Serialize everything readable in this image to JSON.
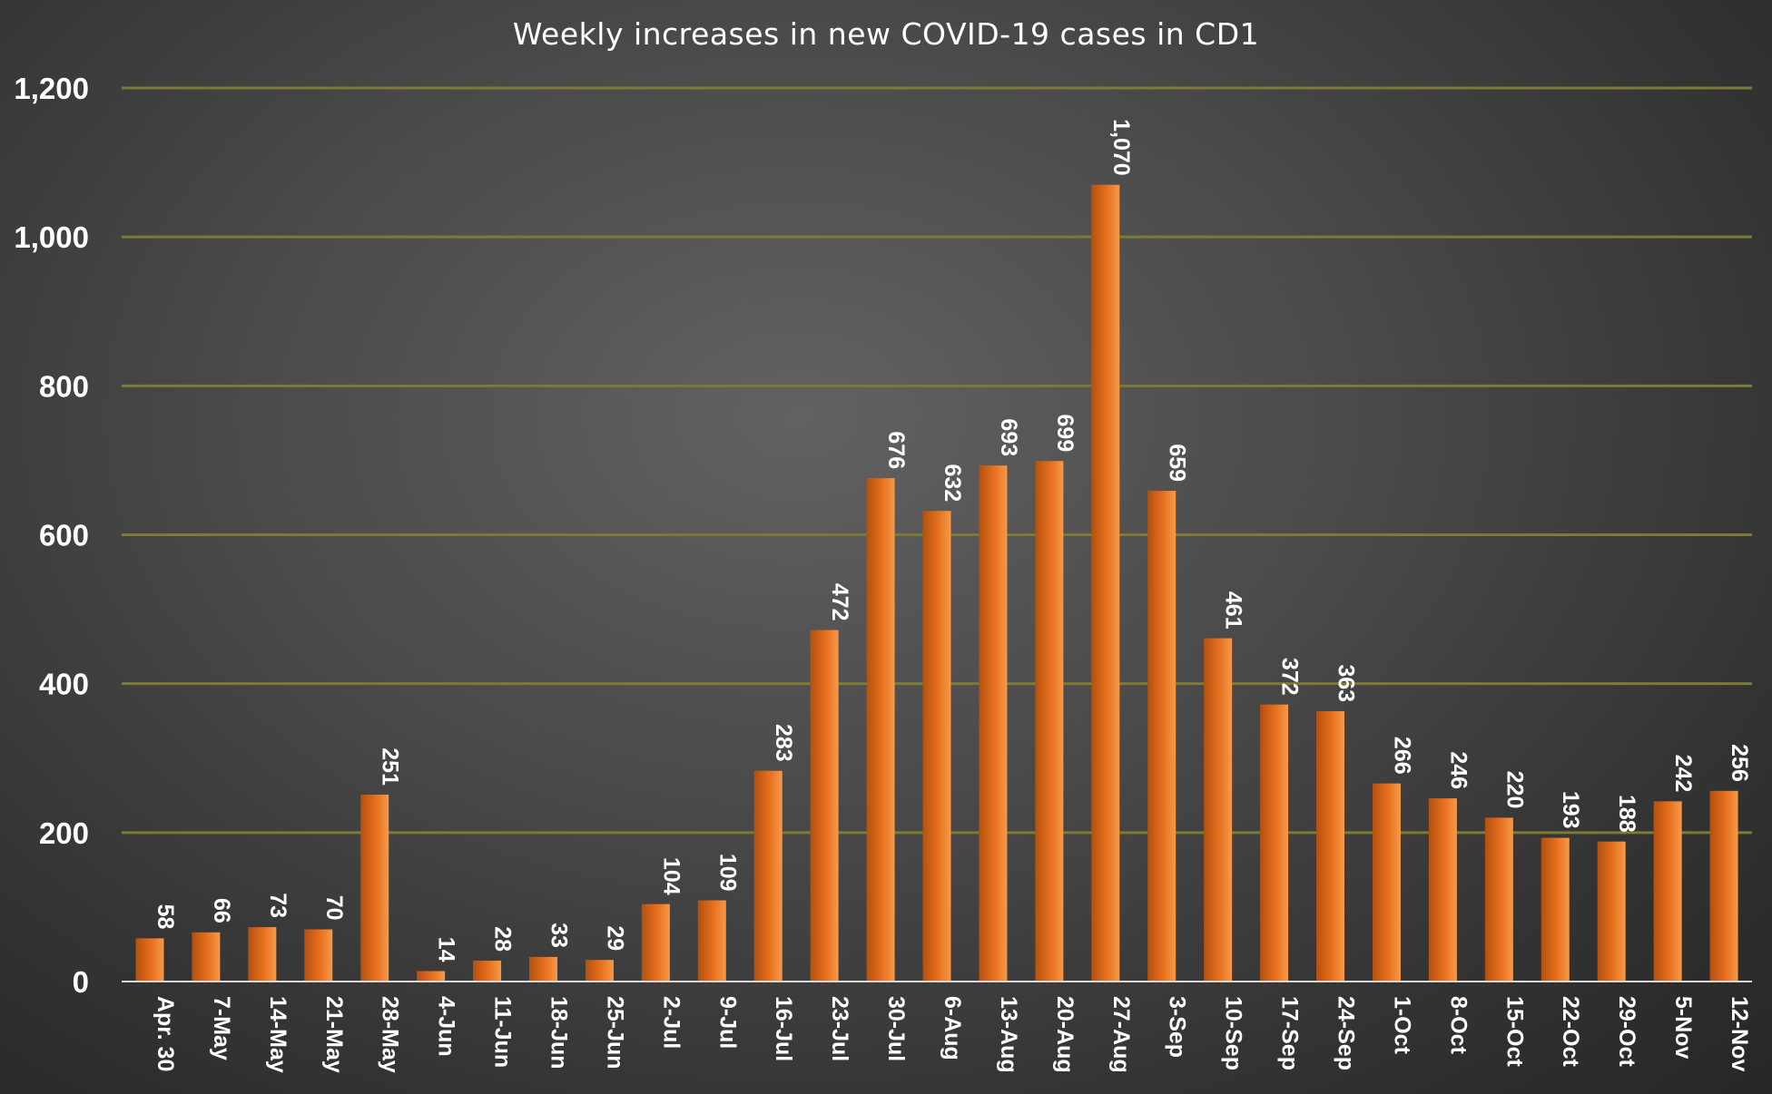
{
  "chart_data": {
    "type": "bar",
    "title": "Weekly increases in new COVID-19 cases in CD1",
    "xlabel": "",
    "ylabel": "",
    "categories": [
      "Apr. 30",
      "7-May",
      "14-May",
      "21-May",
      "28-May",
      "4-Jun",
      "11-Jun",
      "18-Jun",
      "25-Jun",
      "2-Jul",
      "9-Jul",
      "16-Jul",
      "23-Jul",
      "30-Jul",
      "6-Aug",
      "13-Aug",
      "20-Aug",
      "27-Aug",
      "3-Sep",
      "10-Sep",
      "17-Sep",
      "24-Sep",
      "1-Oct",
      "8-Oct",
      "15-Oct",
      "22-Oct",
      "29-Oct",
      "5-Nov",
      "12-Nov"
    ],
    "values": [
      58,
      66,
      73,
      70,
      251,
      14,
      28,
      33,
      29,
      104,
      109,
      283,
      472,
      676,
      632,
      693,
      699,
      1070,
      659,
      461,
      372,
      363,
      266,
      246,
      220,
      193,
      188,
      242,
      256
    ],
    "data_labels": [
      "58",
      "66",
      "73",
      "70",
      "251",
      "14",
      "28",
      "33",
      "29",
      "104",
      "109",
      "283",
      "472",
      "676",
      "632",
      "693",
      "699",
      "1,070",
      "659",
      "461",
      "372",
      "363",
      "266",
      "246",
      "220",
      "193",
      "188",
      "242",
      "256"
    ],
    "ylim": [
      0,
      1200
    ],
    "yticks": [
      0,
      200,
      400,
      600,
      800,
      1000,
      1200
    ],
    "ytick_labels": [
      "0",
      "200",
      "400",
      "600",
      "800",
      "1,000",
      "1,200"
    ],
    "grid": true,
    "legend": "none",
    "colors": {
      "bar": "#e8701e",
      "bar_highlight": "#f59a4a",
      "bar_shadow": "#b3500f",
      "gridline": "#7c7a35",
      "text": "#ffffff"
    }
  }
}
